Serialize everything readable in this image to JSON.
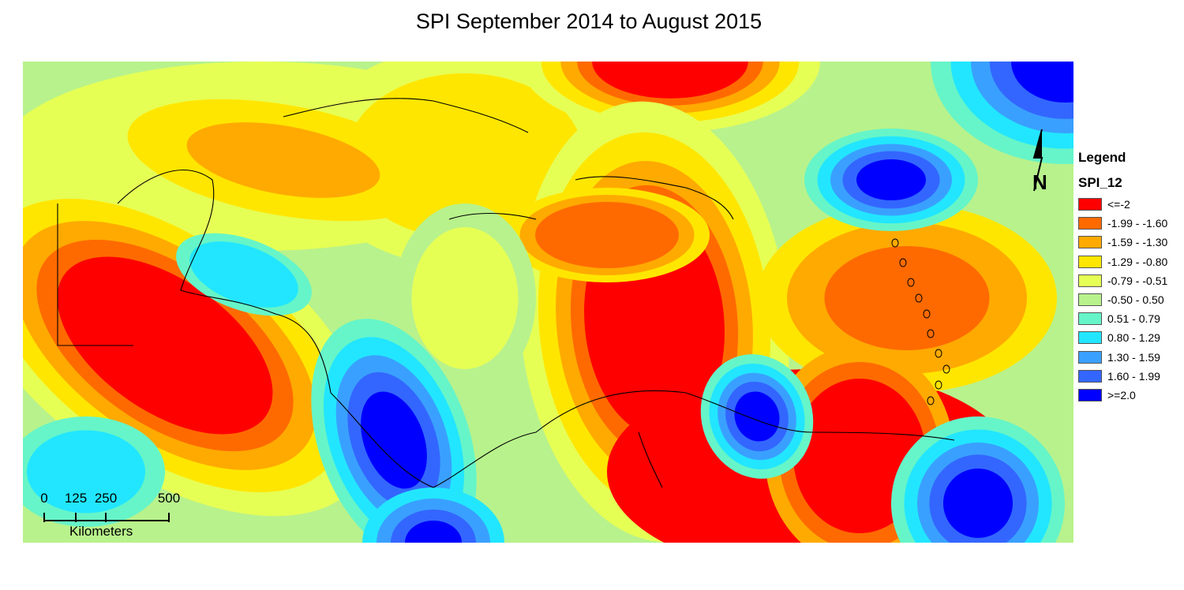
{
  "title": "SPI September 2014 to August 2015",
  "legend": {
    "title": "Legend",
    "field": "SPI_12",
    "classes": [
      {
        "label": "<=-2",
        "color": "#ff0000"
      },
      {
        "label": "-1.99 - -1.60",
        "color": "#ff6a00"
      },
      {
        "label": "-1.59 - -1.30",
        "color": "#ffaa00"
      },
      {
        "label": "-1.29 - -0.80",
        "color": "#ffe600"
      },
      {
        "label": "-0.79 - -0.51",
        "color": "#e6ff55"
      },
      {
        "label": "-0.50 - 0.50",
        "color": "#b8f28c"
      },
      {
        "label": "0.51 - 0.79",
        "color": "#66f5c8"
      },
      {
        "label": "0.80 - 1.29",
        "color": "#22e6ff"
      },
      {
        "label": "1.30 - 1.59",
        "color": "#3aa0ff"
      },
      {
        "label": "1.60 - 1.99",
        "color": "#3366ff"
      },
      {
        "label": ">=2.0",
        "color": "#0000ff"
      }
    ]
  },
  "scale_bar": {
    "ticks": [
      "0",
      "125",
      "250",
      "500"
    ],
    "unit": "Kilometers"
  },
  "north_arrow": {
    "label": "N",
    "icon": "north-arrow-icon"
  }
}
